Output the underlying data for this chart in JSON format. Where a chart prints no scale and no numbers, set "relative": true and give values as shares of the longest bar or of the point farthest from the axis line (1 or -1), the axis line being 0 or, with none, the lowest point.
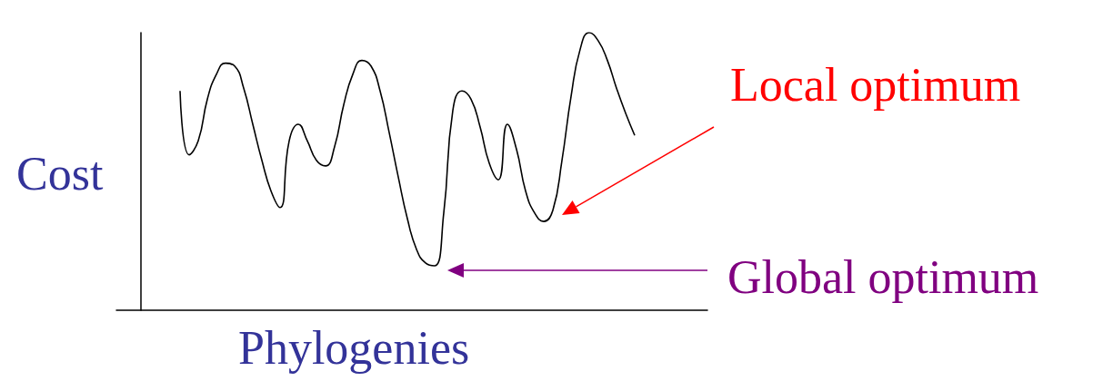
{
  "chart_data": {
    "type": "line",
    "xlabel": "Phylogenies",
    "ylabel": "Cost",
    "relative": true,
    "color": "#000000",
    "marker": "none",
    "categories": [
      null,
      null,
      null,
      null,
      null,
      null,
      null,
      null,
      null,
      null,
      null,
      null,
      null,
      null,
      null,
      null,
      null,
      null,
      null,
      null,
      null,
      null,
      null,
      null,
      null,
      null,
      null,
      null,
      null,
      null,
      null,
      null,
      null,
      null,
      null,
      null,
      null,
      null,
      null,
      null,
      null,
      null,
      null,
      null,
      null,
      null,
      null,
      null,
      null,
      null,
      null,
      null,
      null,
      null,
      null,
      null,
      null,
      null,
      null,
      null,
      null,
      null,
      null,
      null,
      null,
      null
    ],
    "values": [
      null,
      null,
      null,
      null,
      null,
      null,
      null,
      0.79,
      0.56,
      0.61,
      0.76,
      0.85,
      0.89,
      0.88,
      0.8,
      0.67,
      0.54,
      0.43,
      0.37,
      0.61,
      0.67,
      0.61,
      0.54,
      0.52,
      0.59,
      0.74,
      0.85,
      0.9,
      0.88,
      0.79,
      0.64,
      0.48,
      0.33,
      0.22,
      0.17,
      0.16,
      0.35,
      0.72,
      0.79,
      0.76,
      0.66,
      0.53,
      0.47,
      0.67,
      0.58,
      0.43,
      0.35,
      0.32,
      0.36,
      0.54,
      0.77,
      0.94,
      1,
      0.97,
      0.9,
      0.8,
      0.71,
      0.63,
      null,
      null,
      null,
      null,
      null,
      null,
      null,
      null
    ],
    "annotations": [
      "Local optimum",
      "Global optimum"
    ]
  }
}
